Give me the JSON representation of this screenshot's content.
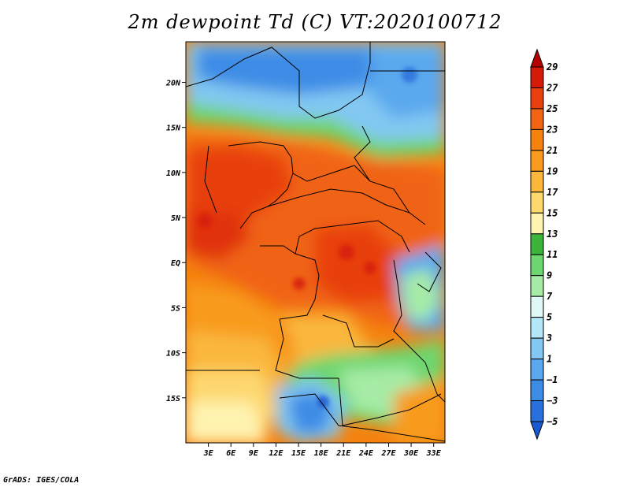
{
  "title": "2m dewpoint Td (C) VT:2020100712",
  "credit": "GrADS: IGES/COLA",
  "map": {
    "lat_range": [
      -20,
      24.5
    ],
    "lon_range": [
      0,
      34.5
    ],
    "lat_ticks": [
      {
        "value": 20,
        "label": "20N"
      },
      {
        "value": 15,
        "label": "15N"
      },
      {
        "value": 10,
        "label": "10N"
      },
      {
        "value": 5,
        "label": "5N"
      },
      {
        "value": 0,
        "label": "EQ"
      },
      {
        "value": -5,
        "label": "5S"
      },
      {
        "value": -10,
        "label": "10S"
      },
      {
        "value": -15,
        "label": "15S"
      }
    ],
    "lon_ticks": [
      {
        "value": 3,
        "label": "3E"
      },
      {
        "value": 6,
        "label": "6E"
      },
      {
        "value": 9,
        "label": "9E"
      },
      {
        "value": 12,
        "label": "12E"
      },
      {
        "value": 15,
        "label": "15E"
      },
      {
        "value": 18,
        "label": "18E"
      },
      {
        "value": 21,
        "label": "21E"
      },
      {
        "value": 24,
        "label": "24E"
      },
      {
        "value": 27,
        "label": "27E"
      },
      {
        "value": 30,
        "label": "30E"
      },
      {
        "value": 33,
        "label": "33E"
      }
    ]
  },
  "colorbar": {
    "labels": [
      "29",
      "27",
      "25",
      "23",
      "21",
      "19",
      "17",
      "15",
      "13",
      "11",
      "9",
      "7",
      "5",
      "3",
      "1",
      "−1",
      "−3",
      "−5"
    ],
    "colors": [
      "#b40000",
      "#d61a0a",
      "#e8400e",
      "#f06414",
      "#f5820f",
      "#f89b1e",
      "#fab73c",
      "#fdd86f",
      "#fff3b0",
      "#3cb43c",
      "#6ed66e",
      "#a6eba6",
      "#e0f8f8",
      "#b4e8f8",
      "#82c8f2",
      "#5aa8ee",
      "#3c8ce6",
      "#2a70dc",
      "#1a5ad0"
    ]
  }
}
